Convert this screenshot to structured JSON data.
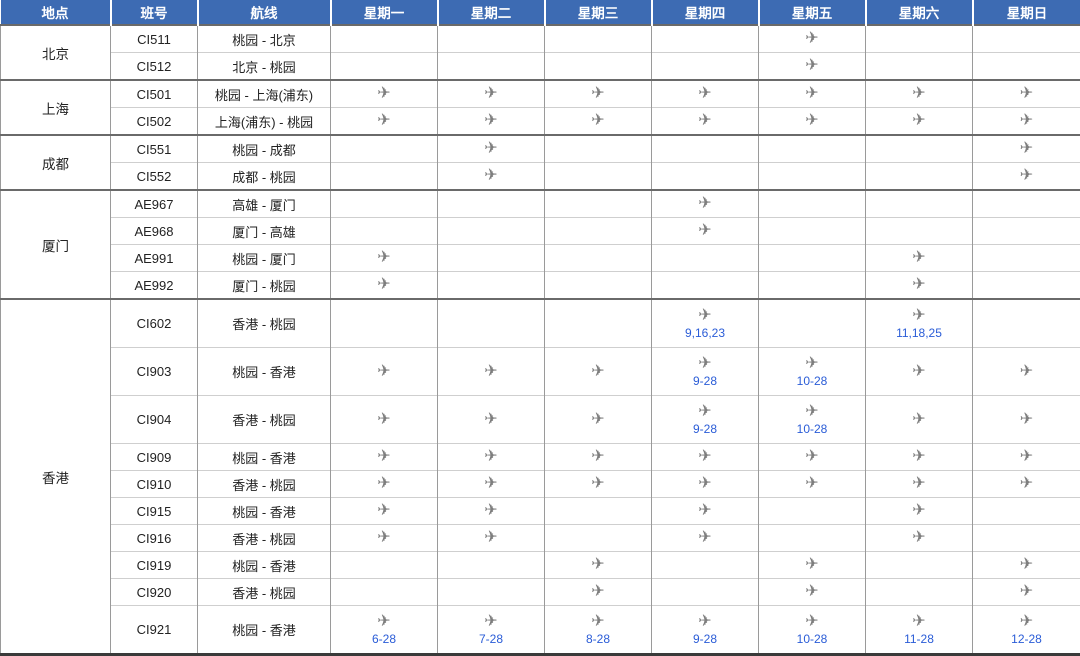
{
  "table": {
    "headers": [
      "地点",
      "班号",
      "航线",
      "星期一",
      "星期二",
      "星期三",
      "星期四",
      "星期五",
      "星期六",
      "星期日"
    ],
    "groups": [
      {
        "location": "北京",
        "flights": [
          {
            "no": "CI511",
            "route": "桃园 - 北京",
            "days": [
              null,
              null,
              null,
              null,
              {
                "plane": true
              },
              null,
              null
            ]
          },
          {
            "no": "CI512",
            "route": "北京 - 桃园",
            "days": [
              null,
              null,
              null,
              null,
              {
                "plane": true
              },
              null,
              null
            ]
          }
        ]
      },
      {
        "location": "上海",
        "flights": [
          {
            "no": "CI501",
            "route": "桃园 - 上海(浦东)",
            "days": [
              {
                "plane": true
              },
              {
                "plane": true
              },
              {
                "plane": true
              },
              {
                "plane": true
              },
              {
                "plane": true
              },
              {
                "plane": true
              },
              {
                "plane": true
              }
            ]
          },
          {
            "no": "CI502",
            "route": "上海(浦东) - 桃园",
            "days": [
              {
                "plane": true
              },
              {
                "plane": true
              },
              {
                "plane": true
              },
              {
                "plane": true
              },
              {
                "plane": true
              },
              {
                "plane": true
              },
              {
                "plane": true
              }
            ]
          }
        ]
      },
      {
        "location": "成都",
        "flights": [
          {
            "no": "CI551",
            "route": "桃园 - 成都",
            "days": [
              null,
              {
                "plane": true
              },
              null,
              null,
              null,
              null,
              {
                "plane": true
              }
            ]
          },
          {
            "no": "CI552",
            "route": "成都 - 桃园",
            "days": [
              null,
              {
                "plane": true
              },
              null,
              null,
              null,
              null,
              {
                "plane": true
              }
            ]
          }
        ]
      },
      {
        "location": "厦门",
        "flights": [
          {
            "no": "AE967",
            "route": "高雄 - 厦门",
            "days": [
              null,
              null,
              null,
              {
                "plane": true
              },
              null,
              null,
              null
            ]
          },
          {
            "no": "AE968",
            "route": "厦门 - 高雄",
            "days": [
              null,
              null,
              null,
              {
                "plane": true
              },
              null,
              null,
              null
            ]
          },
          {
            "no": "AE991",
            "route": "桃园 - 厦门",
            "days": [
              {
                "plane": true
              },
              null,
              null,
              null,
              null,
              {
                "plane": true
              },
              null
            ]
          },
          {
            "no": "AE992",
            "route": "厦门 - 桃园",
            "days": [
              {
                "plane": true
              },
              null,
              null,
              null,
              null,
              {
                "plane": true
              },
              null
            ]
          }
        ]
      },
      {
        "location": "香港",
        "flights": [
          {
            "no": "CI602",
            "route": "香港 - 桃园",
            "days": [
              null,
              null,
              null,
              {
                "plane": true,
                "note": "9,16,23"
              },
              null,
              {
                "plane": true,
                "note": "11,18,25"
              },
              null
            ]
          },
          {
            "no": "CI903",
            "route": "桃园 - 香港",
            "days": [
              {
                "plane": true
              },
              {
                "plane": true
              },
              {
                "plane": true
              },
              {
                "plane": true,
                "note": "9-28"
              },
              {
                "plane": true,
                "note": "10-28"
              },
              {
                "plane": true
              },
              {
                "plane": true
              }
            ]
          },
          {
            "no": "CI904",
            "route": "香港 - 桃园",
            "days": [
              {
                "plane": true
              },
              {
                "plane": true
              },
              {
                "plane": true
              },
              {
                "plane": true,
                "note": "9-28"
              },
              {
                "plane": true,
                "note": "10-28"
              },
              {
                "plane": true
              },
              {
                "plane": true
              }
            ]
          },
          {
            "no": "CI909",
            "route": "桃园 - 香港",
            "days": [
              {
                "plane": true
              },
              {
                "plane": true
              },
              {
                "plane": true
              },
              {
                "plane": true
              },
              {
                "plane": true
              },
              {
                "plane": true
              },
              {
                "plane": true
              }
            ]
          },
          {
            "no": "CI910",
            "route": "香港 - 桃园",
            "days": [
              {
                "plane": true
              },
              {
                "plane": true
              },
              {
                "plane": true
              },
              {
                "plane": true
              },
              {
                "plane": true
              },
              {
                "plane": true
              },
              {
                "plane": true
              }
            ]
          },
          {
            "no": "CI915",
            "route": "桃园 - 香港",
            "days": [
              {
                "plane": true
              },
              {
                "plane": true
              },
              null,
              {
                "plane": true
              },
              null,
              {
                "plane": true
              },
              null
            ]
          },
          {
            "no": "CI916",
            "route": "香港 - 桃园",
            "days": [
              {
                "plane": true
              },
              {
                "plane": true
              },
              null,
              {
                "plane": true
              },
              null,
              {
                "plane": true
              },
              null
            ]
          },
          {
            "no": "CI919",
            "route": "桃园 - 香港",
            "days": [
              null,
              null,
              {
                "plane": true
              },
              null,
              {
                "plane": true
              },
              null,
              {
                "plane": true
              }
            ]
          },
          {
            "no": "CI920",
            "route": "香港 - 桃园",
            "days": [
              null,
              null,
              {
                "plane": true
              },
              null,
              {
                "plane": true
              },
              null,
              {
                "plane": true
              }
            ]
          },
          {
            "no": "CI921",
            "route": "桃园 - 香港",
            "days": [
              {
                "plane": true,
                "note": "6-28"
              },
              {
                "plane": true,
                "note": "7-28"
              },
              {
                "plane": true,
                "note": "8-28"
              },
              {
                "plane": true,
                "note": "9-28"
              },
              {
                "plane": true,
                "note": "10-28"
              },
              {
                "plane": true,
                "note": "11-28"
              },
              {
                "plane": true,
                "note": "12-28"
              }
            ]
          }
        ]
      }
    ]
  },
  "icons": {
    "plane": "✈"
  },
  "colors": {
    "header_bg": "#3d6bb3",
    "header_text": "#ffffff",
    "plane_gray": "#7e7e7e",
    "note_blue": "#2a5cd7",
    "group_border": "#6a6a6a",
    "row_border": "#cfcfcf"
  }
}
